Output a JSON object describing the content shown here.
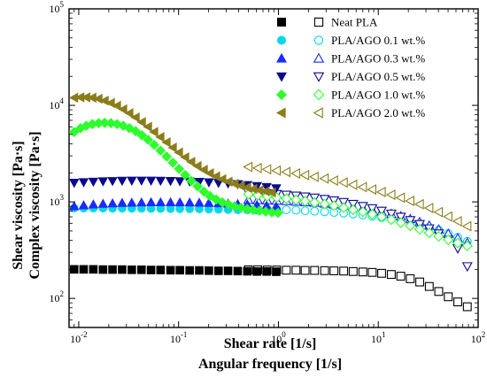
{
  "chart_data": {
    "type": "scatter",
    "x_scale": "log",
    "y_scale": "log",
    "xlim": [
      0.008,
      100
    ],
    "ylim": [
      50,
      100000
    ],
    "x_ticks": [
      {
        "value": 0.01,
        "base": "10",
        "exp": "-2"
      },
      {
        "value": 0.1,
        "base": "10",
        "exp": "-1"
      },
      {
        "value": 1,
        "base": "10",
        "exp": "0"
      },
      {
        "value": 10,
        "base": "10",
        "exp": "1"
      },
      {
        "value": 100,
        "base": "10",
        "exp": "2"
      }
    ],
    "y_ticks": [
      {
        "value": 100,
        "base": "10",
        "exp": "2"
      },
      {
        "value": 1000,
        "base": "10",
        "exp": "3"
      },
      {
        "value": 10000,
        "base": "10",
        "exp": "4"
      },
      {
        "value": 100000,
        "base": "10",
        "exp": "5"
      }
    ],
    "xlabel_lines": [
      "Shear rate [1/s]",
      "Angular frequency [1/s]"
    ],
    "ylabel_lines": [
      "Shear viscosity [Pa·s]",
      "Complex viscosity [Pa·s]"
    ],
    "legend_position": "top-right",
    "grid": false,
    "series": [
      {
        "name": "Neat PLA",
        "color": "#000000",
        "shear": {
          "marker": "square",
          "filled": true,
          "x": [
            0.009,
            0.0112,
            0.014,
            0.0175,
            0.0218,
            0.0272,
            0.034,
            0.0425,
            0.053,
            0.066,
            0.083,
            0.103,
            0.129,
            0.161,
            0.201,
            0.251,
            0.313,
            0.391,
            0.488,
            0.609,
            0.761,
            0.95
          ],
          "y": [
            200,
            200,
            200,
            199,
            199,
            199,
            198,
            198,
            197,
            197,
            196,
            196,
            195,
            195,
            194,
            193,
            193,
            192,
            191,
            190,
            190,
            189
          ]
        },
        "osc": {
          "marker": "square",
          "filled": false,
          "x": [
            0.5,
            0.62,
            0.77,
            0.96,
            1.2,
            1.5,
            1.85,
            2.3,
            2.9,
            3.6,
            4.5,
            5.6,
            7,
            8.7,
            10.8,
            13.5,
            16.8,
            20.9,
            26,
            32.4,
            40.3,
            50.2,
            62.5,
            77.9
          ],
          "y": [
            198,
            198,
            197,
            197,
            196,
            196,
            195,
            195,
            194,
            193,
            192,
            190,
            188,
            186,
            182,
            177,
            170,
            160,
            148,
            133,
            118,
            104,
            92,
            82
          ]
        }
      },
      {
        "name": "PLA/AGO 0.1 wt.%",
        "color": "#00d8e8",
        "shear": {
          "marker": "circle",
          "filled": true,
          "x": [
            0.009,
            0.0112,
            0.014,
            0.0175,
            0.0218,
            0.0272,
            0.034,
            0.0425,
            0.053,
            0.066,
            0.083,
            0.103,
            0.129,
            0.161,
            0.201,
            0.251,
            0.313,
            0.391,
            0.488,
            0.609,
            0.761,
            0.95
          ],
          "y": [
            860,
            860,
            860,
            860,
            858,
            858,
            856,
            856,
            854,
            852,
            850,
            848,
            846,
            844,
            840,
            836,
            832,
            828,
            824,
            820,
            816,
            812
          ]
        },
        "osc": {
          "marker": "circle",
          "filled": false,
          "x": [
            0.5,
            0.62,
            0.77,
            0.96,
            1.2,
            1.5,
            1.85,
            2.3,
            2.9,
            3.6,
            4.5,
            5.6,
            7,
            8.7,
            10.8,
            13.5,
            16.8,
            20.9,
            26,
            32.4,
            40.3,
            50.2,
            62.5,
            77.9
          ],
          "y": [
            850,
            845,
            840,
            835,
            828,
            820,
            810,
            800,
            790,
            778,
            765,
            750,
            730,
            712,
            690,
            665,
            640,
            610,
            580,
            545,
            510,
            470,
            430,
            390
          ]
        }
      },
      {
        "name": "PLA/AGO 0.3 wt.%",
        "color": "#1a2bff",
        "shear": {
          "marker": "triangle-up",
          "filled": true,
          "x": [
            0.009,
            0.0112,
            0.014,
            0.0175,
            0.0218,
            0.0272,
            0.034,
            0.0425,
            0.053,
            0.066,
            0.083,
            0.103,
            0.129,
            0.161,
            0.201,
            0.251,
            0.313,
            0.391,
            0.488,
            0.609,
            0.761,
            0.95
          ],
          "y": [
            900,
            920,
            940,
            955,
            965,
            975,
            980,
            985,
            990,
            990,
            990,
            988,
            985,
            980,
            975,
            968,
            960,
            950,
            940,
            928,
            915,
            900
          ]
        },
        "osc": {
          "marker": "triangle-up",
          "filled": false,
          "x": [
            0.5,
            0.62,
            0.77,
            0.96,
            1.2,
            1.5,
            1.85,
            2.3,
            2.9,
            3.6,
            4.5,
            5.6,
            7,
            8.7,
            10.8,
            13.5,
            16.8,
            20.9,
            26,
            32.4,
            40.3,
            50.2,
            62.5,
            77.9
          ],
          "y": [
            1050,
            1045,
            1040,
            1030,
            1020,
            1008,
            995,
            980,
            960,
            940,
            915,
            888,
            860,
            828,
            792,
            752,
            710,
            665,
            618,
            568,
            518,
            468,
            420,
            378
          ]
        }
      },
      {
        "name": "PLA/AGO 0.5 wt.%",
        "color": "#0a0a8c",
        "shear": {
          "marker": "triangle-down",
          "filled": true,
          "x": [
            0.009,
            0.0112,
            0.014,
            0.0175,
            0.0218,
            0.0272,
            0.034,
            0.0425,
            0.053,
            0.066,
            0.083,
            0.103,
            0.129,
            0.161,
            0.201,
            0.251,
            0.313,
            0.391,
            0.488,
            0.609,
            0.761,
            0.95
          ],
          "y": [
            1580,
            1600,
            1620,
            1635,
            1645,
            1655,
            1660,
            1662,
            1660,
            1655,
            1648,
            1640,
            1628,
            1612,
            1595,
            1575,
            1552,
            1525,
            1495,
            1460,
            1425,
            1385
          ]
        },
        "osc": {
          "marker": "triangle-down",
          "filled": false,
          "x": [
            0.5,
            0.62,
            0.77,
            0.96,
            1.2,
            1.5,
            1.85,
            2.3,
            2.9,
            3.6,
            4.5,
            5.6,
            7,
            8.7,
            10.8,
            13.5,
            16.8,
            20.9,
            26,
            32.4,
            40.3,
            50.2,
            62.5,
            77.9
          ],
          "y": [
            1250,
            1240,
            1225,
            1205,
            1185,
            1160,
            1135,
            1105,
            1072,
            1035,
            995,
            952,
            905,
            858,
            808,
            755,
            700,
            645,
            588,
            530,
            470,
            405,
            330,
            215
          ]
        }
      },
      {
        "name": "PLA/AGO 1.0 wt.%",
        "color": "#2dff2d",
        "shear": {
          "marker": "diamond",
          "filled": true,
          "x": [
            0.009,
            0.0104,
            0.0119,
            0.0137,
            0.0158,
            0.0182,
            0.021,
            0.0242,
            0.0279,
            0.0322,
            0.0372,
            0.0429,
            0.0495,
            0.057,
            0.0658,
            0.0759,
            0.0876,
            0.101,
            0.1165,
            0.134,
            0.155,
            0.179,
            0.206,
            0.238,
            0.274,
            0.316,
            0.365,
            0.421,
            0.486,
            0.56,
            0.646,
            0.746,
            0.86,
            0.99
          ],
          "y": [
            5300,
            5800,
            6150,
            6400,
            6550,
            6600,
            6550,
            6400,
            6150,
            5800,
            5400,
            4900,
            4400,
            3900,
            3400,
            2950,
            2550,
            2200,
            1900,
            1650,
            1450,
            1280,
            1150,
            1060,
            990,
            940,
            900,
            870,
            845,
            825,
            810,
            795,
            780,
            770
          ]
        },
        "osc": {
          "marker": "diamond",
          "filled": false,
          "x": [
            0.5,
            0.62,
            0.77,
            0.96,
            1.2,
            1.5,
            1.85,
            2.3,
            2.9,
            3.6,
            4.5,
            5.6,
            7,
            8.7,
            10.8,
            13.5,
            16.8,
            20.9,
            26,
            32.4,
            40.3,
            50.2,
            62.5,
            77.9
          ],
          "y": [
            1200,
            1170,
            1140,
            1110,
            1080,
            1050,
            1018,
            985,
            950,
            912,
            872,
            830,
            788,
            745,
            700,
            655,
            610,
            565,
            520,
            478,
            440,
            405,
            375,
            350
          ]
        }
      },
      {
        "name": "PLA/AGO 2.0 wt.%",
        "color": "#8b7d1a",
        "shear": {
          "marker": "triangle-left",
          "filled": true,
          "x": [
            0.009,
            0.0104,
            0.0119,
            0.0137,
            0.0158,
            0.0182,
            0.021,
            0.0242,
            0.0279,
            0.0322,
            0.0372,
            0.0429,
            0.0495,
            0.057,
            0.0658,
            0.0759,
            0.0876,
            0.101,
            0.1165,
            0.134,
            0.155,
            0.179,
            0.206,
            0.238,
            0.274,
            0.316,
            0.365,
            0.421,
            0.486,
            0.56,
            0.646,
            0.746,
            0.86
          ],
          "y": [
            12000,
            12100,
            12100,
            12000,
            11700,
            11200,
            10600,
            9900,
            9100,
            8300,
            7500,
            6700,
            6000,
            5300,
            4700,
            4150,
            3650,
            3250,
            2900,
            2600,
            2350,
            2150,
            1980,
            1840,
            1720,
            1620,
            1540,
            1470,
            1410,
            1360,
            1320,
            1285,
            1255
          ]
        },
        "osc": {
          "marker": "triangle-left",
          "filled": false,
          "x": [
            0.5,
            0.62,
            0.77,
            0.96,
            1.2,
            1.5,
            1.85,
            2.3,
            2.9,
            3.6,
            4.5,
            5.6,
            7,
            8.7,
            10.8,
            13.5,
            16.8,
            20.9,
            26,
            32.4,
            40.3,
            50.2,
            62.5,
            77.9
          ],
          "y": [
            2300,
            2240,
            2175,
            2110,
            2040,
            1970,
            1895,
            1820,
            1745,
            1665,
            1585,
            1505,
            1425,
            1345,
            1265,
            1185,
            1105,
            1025,
            945,
            865,
            785,
            705,
            630,
            560
          ]
        }
      }
    ]
  }
}
